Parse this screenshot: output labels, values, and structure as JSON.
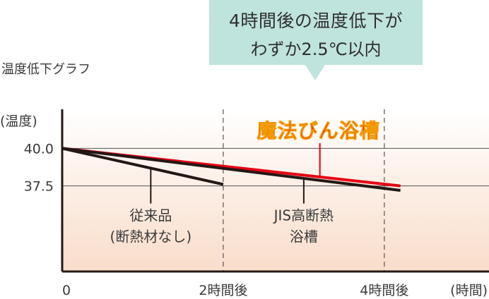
{
  "graph_title": "温度低下グラフ",
  "callout": {
    "line1": "4時間後の温度低下が",
    "line2": "わずか2.5℃以内"
  },
  "chart_data": {
    "type": "line",
    "title": "温度低下グラフ",
    "ylabel": "(温度)",
    "xlabel": "(時間)",
    "x_ticks": [
      {
        "x": 0,
        "label": "0"
      },
      {
        "x": 2,
        "label": "2時間後"
      },
      {
        "x": 4,
        "label": "4時間後"
      }
    ],
    "y_ticks": [
      {
        "y": 40.0,
        "label": "40.0"
      },
      {
        "y": 37.5,
        "label": "37.5"
      }
    ],
    "xlim": [
      0,
      5.3
    ],
    "ylim": [
      31.8,
      42.6
    ],
    "grid": true,
    "series": [
      {
        "name": "魔法びん浴槽",
        "color": "#e60012",
        "points": [
          [
            0,
            40.0
          ],
          [
            4.2,
            37.5
          ]
        ]
      },
      {
        "name": "JIS高断熱浴槽",
        "color": "#231815",
        "points": [
          [
            0,
            40.0
          ],
          [
            4.2,
            37.2
          ]
        ]
      },
      {
        "name": "従来品(断熱材なし)",
        "color": "#231815",
        "points": [
          [
            0,
            40.0
          ],
          [
            2.0,
            37.6
          ]
        ]
      }
    ],
    "annotations": [
      {
        "text": "従来品",
        "text2": "(断熱材なし)",
        "series": "従来品(断熱材なし)",
        "attach_x": 1.1,
        "label_x": 1.1,
        "label_y": 35.2
      },
      {
        "text": "JIS高断熱",
        "text2": "浴槽",
        "series": "JIS高断熱浴槽",
        "attach_x": 3.0,
        "label_x": 3.0,
        "label_y": 35.2
      },
      {
        "text": "魔法びん浴槽",
        "series": "魔法びん浴槽",
        "attach_x": 3.2,
        "label_x": 3.2,
        "label_y": 41.0
      }
    ],
    "colors": {
      "axis": "#231815",
      "red": "#e60012",
      "brand_orange": "#f39800",
      "bg_top": "#ffffff",
      "bg_bottom": "#f9ddca"
    }
  }
}
